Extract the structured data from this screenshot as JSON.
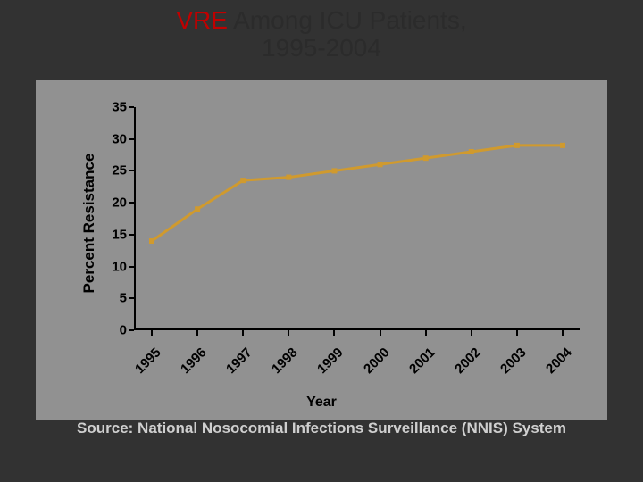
{
  "title": {
    "vre": "VRE",
    "rest1": " Among ICU Patients,",
    "line2": "1995-2004"
  },
  "chart": {
    "type": "line",
    "background_color": "#919191",
    "line_color": "#d09a2e",
    "line_width": 3,
    "marker_color": "#d09a2e",
    "marker_size": 6,
    "axis_color": "#000000",
    "ylabel": "Percent Resistance",
    "xlabel": "Year",
    "ylim": [
      0,
      35
    ],
    "ytick_step": 5,
    "yticks": [
      "0",
      "5",
      "10",
      "15",
      "20",
      "25",
      "30",
      "35"
    ],
    "categories": [
      "1995",
      "1996",
      "1997",
      "1998",
      "1999",
      "2000",
      "2001",
      "2002",
      "2003",
      "2004"
    ],
    "values": [
      14,
      19,
      23.5,
      24,
      25,
      26,
      27,
      28,
      29,
      29
    ],
    "label_fontsize": 17,
    "tick_fontsize": 15,
    "tick_fontweight": "bold"
  },
  "source": "Source: National Nosocomial Infections Surveillance (NNIS) System"
}
